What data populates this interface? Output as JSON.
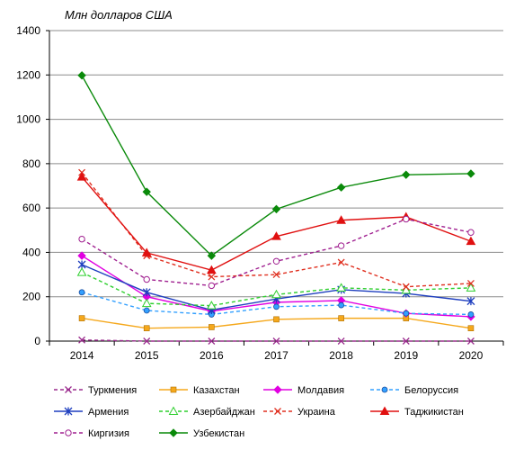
{
  "chart_data": {
    "type": "line",
    "unit_label": "Млн долларов США",
    "x": [
      "2014",
      "2015",
      "2016",
      "2017",
      "2018",
      "2019",
      "2020"
    ],
    "ylim": [
      0,
      1400
    ],
    "yticks": [
      0,
      200,
      400,
      600,
      800,
      1000,
      1200,
      1400
    ],
    "grid": true,
    "legend_position": "bottom",
    "series": [
      {
        "name": "Туркмения",
        "color": "#9b2c8e",
        "dash": "dashed",
        "marker": "x",
        "values": [
          5,
          0,
          0,
          0,
          0,
          0,
          0
        ]
      },
      {
        "name": "Казахстан",
        "color": "#f5a81c",
        "dash": "solid",
        "marker": "square",
        "values": [
          103,
          58,
          63,
          98,
          103,
          103,
          58
        ]
      },
      {
        "name": "Молдавия",
        "color": "#e100e1",
        "dash": "solid",
        "marker": "diamond",
        "values": [
          385,
          200,
          135,
          175,
          183,
          125,
          110
        ]
      },
      {
        "name": "Белоруссия",
        "color": "#33a0ff",
        "dash": "dashed",
        "marker": "circle",
        "values": [
          220,
          138,
          120,
          155,
          162,
          125,
          120
        ]
      },
      {
        "name": "Армения",
        "color": "#1f3fbf",
        "dash": "solid",
        "marker": "star",
        "values": [
          345,
          220,
          140,
          190,
          232,
          215,
          180
        ]
      },
      {
        "name": "Азербайджан",
        "color": "#2fcf2f",
        "dash": "dashed",
        "marker": "triangle-open",
        "values": [
          310,
          170,
          160,
          210,
          240,
          230,
          240
        ]
      },
      {
        "name": "Украина",
        "color": "#e03020",
        "dash": "dashed",
        "marker": "x",
        "values": [
          760,
          385,
          290,
          300,
          355,
          245,
          260
        ]
      },
      {
        "name": "Таджикистан",
        "color": "#e01010",
        "dash": "solid",
        "marker": "triangle",
        "values": [
          740,
          398,
          320,
          472,
          545,
          560,
          450
        ]
      },
      {
        "name": "Киргизия",
        "color": "#a02090",
        "dash": "dashed",
        "marker": "circle-open",
        "values": [
          460,
          278,
          250,
          360,
          430,
          550,
          490
        ]
      },
      {
        "name": "Узбекистан",
        "color": "#0a8a0a",
        "dash": "solid",
        "marker": "diamond",
        "values": [
          1198,
          673,
          385,
          595,
          693,
          750,
          755
        ]
      }
    ]
  }
}
